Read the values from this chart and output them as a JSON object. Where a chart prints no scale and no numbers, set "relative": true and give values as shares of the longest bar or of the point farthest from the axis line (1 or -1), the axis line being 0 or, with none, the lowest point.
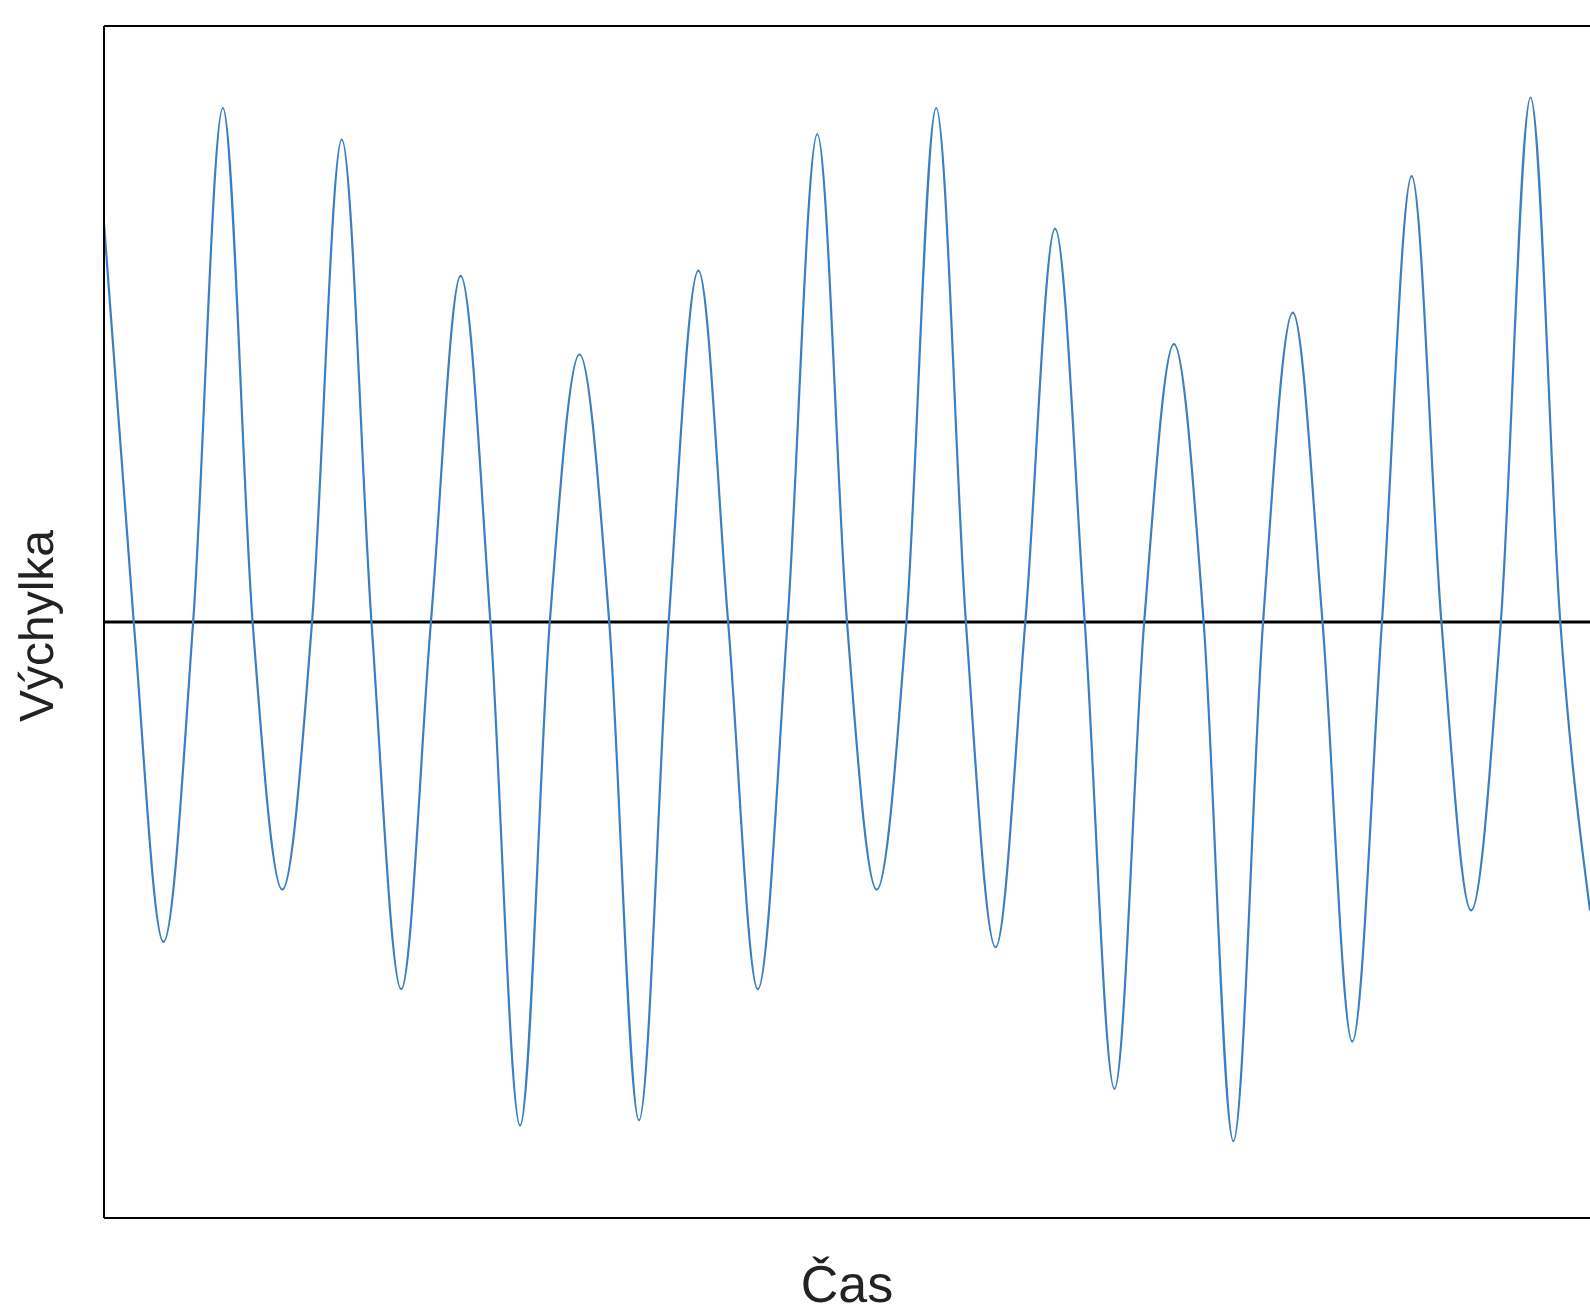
{
  "chart_data": {
    "type": "line",
    "relative": true,
    "xlabel": "Čas",
    "ylabel": "Výchylka",
    "categories": [
      null,
      null,
      null,
      null,
      null,
      null,
      null,
      null,
      null,
      null,
      null,
      null,
      null,
      null,
      null,
      null,
      null,
      null,
      null,
      null,
      null,
      null,
      null,
      null,
      null,
      null,
      null,
      null,
      null,
      null,
      null,
      null,
      null,
      null,
      null,
      null,
      null,
      null,
      null,
      null,
      null,
      null,
      null,
      null,
      null,
      null,
      null,
      null,
      null,
      null,
      null
    ],
    "series": [
      {
        "color": "#3a7fc1",
        "values": [
          0.76,
          0,
          -0.61,
          0,
          0.98,
          0,
          -0.51,
          0,
          0.92,
          0,
          -0.7,
          0,
          0.66,
          0,
          -0.96,
          0,
          0.51,
          0,
          -0.95,
          0,
          0.67,
          0,
          -0.7,
          0,
          0.93,
          0,
          -0.51,
          0,
          0.98,
          0,
          -0.62,
          0,
          0.75,
          0,
          -0.89,
          0,
          0.53,
          0,
          -0.99,
          0,
          0.59,
          0,
          -0.8,
          0,
          0.85,
          0,
          -0.55,
          0,
          1,
          0,
          -0.55
        ]
      }
    ],
    "ref_lines": [
      {
        "axis": "y",
        "value": 0,
        "color": "#000000"
      }
    ],
    "grid": false,
    "legend": false,
    "marker": "none",
    "line_style": "solid"
  }
}
